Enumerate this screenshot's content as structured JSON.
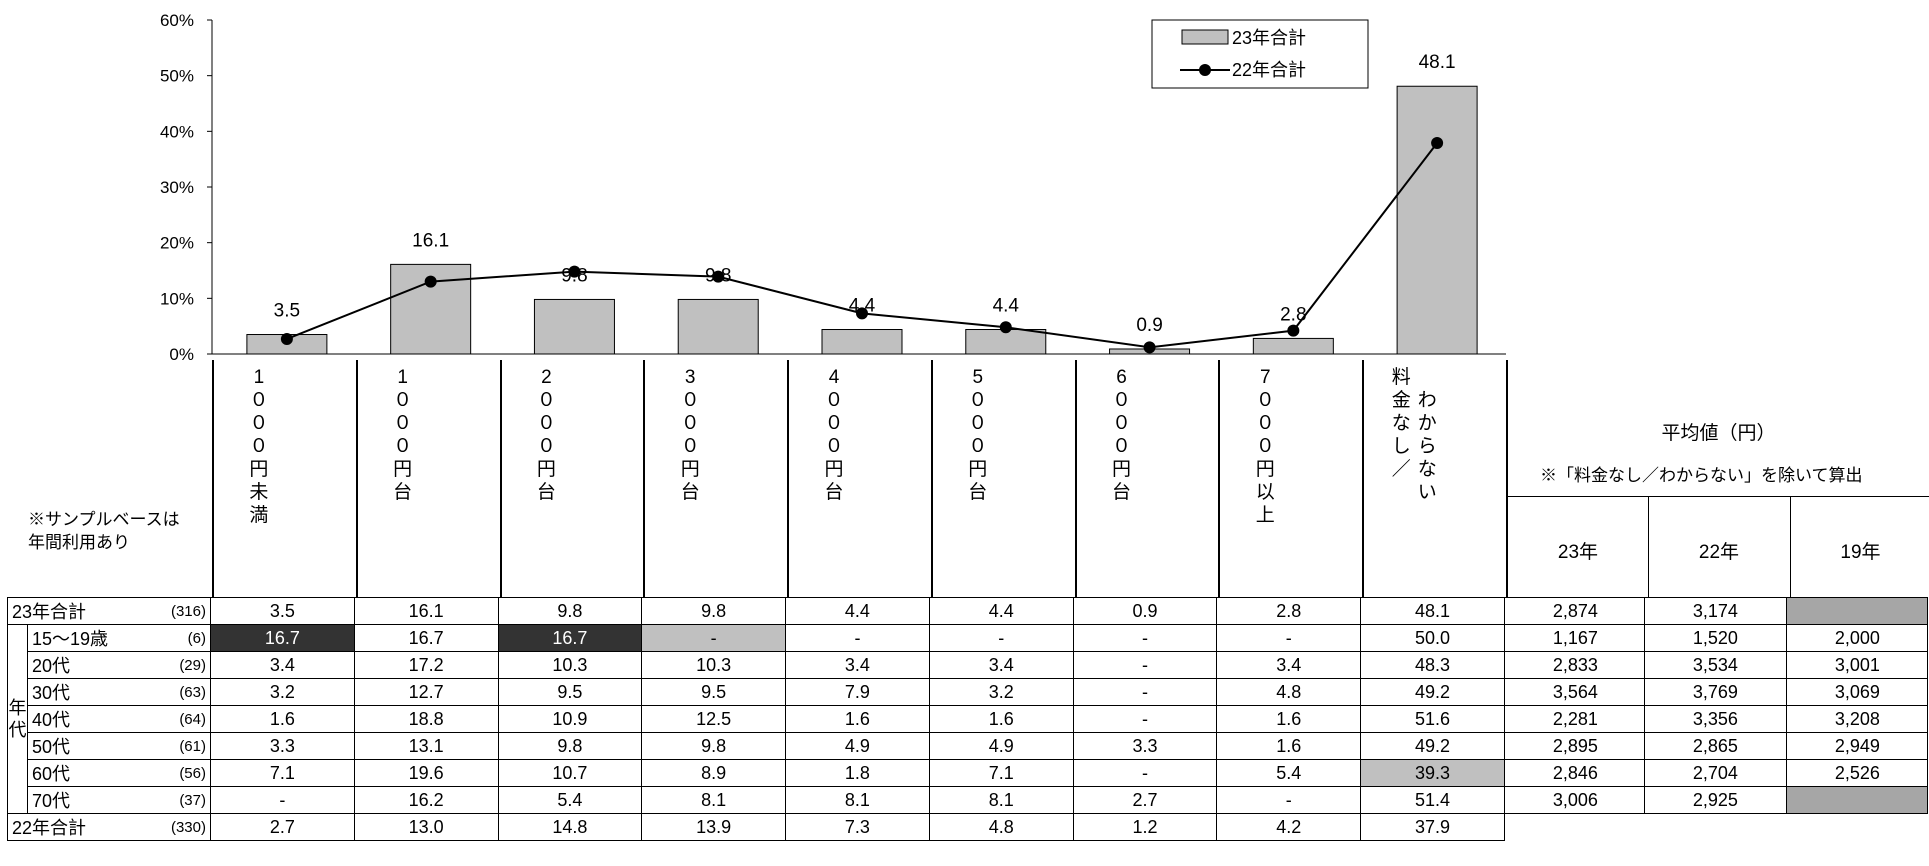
{
  "chart_data": {
    "type": "bar",
    "categories": [
      "1000円未満",
      "1000円台",
      "2000円台",
      "3000円台",
      "4000円台",
      "5000円台",
      "6000円台",
      "7000円以上",
      "料金なし／わからない"
    ],
    "series": [
      {
        "name": "23年合計",
        "type": "bar",
        "values": [
          3.5,
          16.1,
          9.8,
          9.8,
          4.4,
          4.4,
          0.9,
          2.8,
          48.1
        ],
        "color": "#c0c0c0"
      },
      {
        "name": "22年合計",
        "type": "line",
        "values": [
          2.7,
          13.0,
          14.8,
          13.9,
          7.3,
          4.8,
          1.2,
          4.2,
          37.9
        ],
        "color": "#000000"
      }
    ],
    "data_labels": [
      "3.5",
      "16.1",
      "9.8",
      "9.8",
      "4.4",
      "4.4",
      "0.9",
      "2.8",
      "48.1"
    ],
    "yticks": [
      "0%",
      "10%",
      "20%",
      "30%",
      "40%",
      "50%",
      "60%"
    ],
    "ylim": [
      0,
      60
    ],
    "legend_position": "top-right"
  },
  "column_headers": [
    [
      "1",
      "０",
      "０",
      "０",
      "円",
      "未",
      "満"
    ],
    [
      "1",
      "０",
      "０",
      "０",
      "円",
      "台"
    ],
    [
      "2",
      "０",
      "０",
      "０",
      "円",
      "台"
    ],
    [
      "3",
      "０",
      "０",
      "０",
      "円",
      "台"
    ],
    [
      "4",
      "０",
      "０",
      "０",
      "円",
      "台"
    ],
    [
      "5",
      "０",
      "０",
      "０",
      "円",
      "台"
    ],
    [
      "6",
      "０",
      "０",
      "０",
      "円",
      "台"
    ],
    [
      "7",
      "０",
      "０",
      "０",
      "円",
      "以",
      "上"
    ]
  ],
  "last_header_col1": [
    "料",
    "金",
    "な",
    "し",
    "／"
  ],
  "last_header_col2": [
    "わ",
    "か",
    "ら",
    "な",
    "い"
  ],
  "note_sample": [
    "※サンプルベースは",
    "年間利用あり"
  ],
  "avg_title": "平均値（円）",
  "avg_note": "※「料金なし／わからない」を除いて算出",
  "avg_years": [
    "23年",
    "22年",
    "19年"
  ],
  "age_group_label": [
    "年",
    "代"
  ],
  "rows": [
    {
      "label": "23年合計",
      "n": "(316)",
      "values": [
        "3.5",
        "16.1",
        "9.8",
        "9.8",
        "4.4",
        "4.4",
        "0.9",
        "2.8",
        "48.1"
      ],
      "avg": [
        "2,874",
        "3,174",
        ""
      ]
    },
    {
      "label": "15～19歳",
      "n": "(6)",
      "values": [
        "16.7",
        "16.7",
        "16.7",
        "-",
        "-",
        "-",
        "-",
        "-",
        "50.0"
      ],
      "avg": [
        "1,167",
        "1,520",
        "2,000"
      ]
    },
    {
      "label": "20代",
      "n": "(29)",
      "values": [
        "3.4",
        "17.2",
        "10.3",
        "10.3",
        "3.4",
        "3.4",
        "-",
        "3.4",
        "48.3"
      ],
      "avg": [
        "2,833",
        "3,534",
        "3,001"
      ]
    },
    {
      "label": "30代",
      "n": "(63)",
      "values": [
        "3.2",
        "12.7",
        "9.5",
        "9.5",
        "7.9",
        "3.2",
        "-",
        "4.8",
        "49.2"
      ],
      "avg": [
        "3,564",
        "3,769",
        "3,069"
      ]
    },
    {
      "label": "40代",
      "n": "(64)",
      "values": [
        "1.6",
        "18.8",
        "10.9",
        "12.5",
        "1.6",
        "1.6",
        "-",
        "1.6",
        "51.6"
      ],
      "avg": [
        "2,281",
        "3,356",
        "3,208"
      ]
    },
    {
      "label": "50代",
      "n": "(61)",
      "values": [
        "3.3",
        "13.1",
        "9.8",
        "9.8",
        "4.9",
        "4.9",
        "3.3",
        "1.6",
        "49.2"
      ],
      "avg": [
        "2,895",
        "2,865",
        "2,949"
      ]
    },
    {
      "label": "60代",
      "n": "(56)",
      "values": [
        "7.1",
        "19.6",
        "10.7",
        "8.9",
        "1.8",
        "7.1",
        "-",
        "5.4",
        "39.3"
      ],
      "avg": [
        "2,846",
        "2,704",
        "2,526"
      ]
    },
    {
      "label": "70代",
      "n": "(37)",
      "values": [
        "-",
        "16.2",
        "5.4",
        "8.1",
        "8.1",
        "8.1",
        "2.7",
        "-",
        "51.4"
      ],
      "avg": [
        "3,006",
        "2,925",
        ""
      ]
    },
    {
      "label": "22年合計",
      "n": "(330)",
      "values": [
        "2.7",
        "13.0",
        "14.8",
        "13.9",
        "7.3",
        "4.8",
        "1.2",
        "4.2",
        "37.9"
      ],
      "avg": null
    }
  ]
}
